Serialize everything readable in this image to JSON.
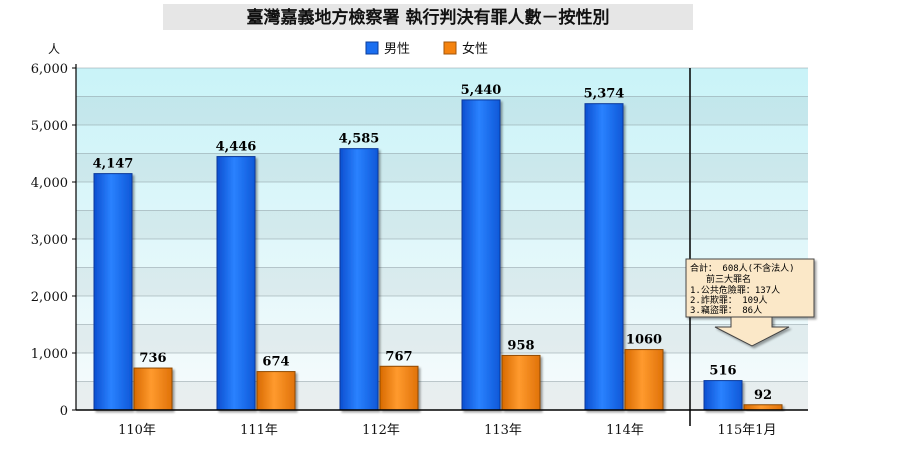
{
  "chart_data": {
    "type": "bar",
    "title": "臺灣嘉義地方檢察署  執行判決有罪人數－按性別",
    "ylabel": "人",
    "xlabel": "",
    "categories": [
      "110年",
      "111年",
      "112年",
      "113年",
      "114年",
      "115年1月"
    ],
    "series": [
      {
        "name": "男性",
        "color": "#1a6ef0",
        "values": [
          4147,
          4446,
          4585,
          5440,
          5374,
          516
        ],
        "labels": [
          "4,147",
          "4,446",
          "4,585",
          "5,440",
          "5,374",
          "516"
        ]
      },
      {
        "name": "女性",
        "color": "#f5830f",
        "values": [
          736,
          674,
          767,
          958,
          1060,
          92
        ],
        "labels": [
          "736",
          "674",
          "767",
          "958",
          "1060",
          "92"
        ]
      }
    ],
    "ylim": [
      0,
      6000
    ],
    "yticks": [
      0,
      1000,
      2000,
      3000,
      4000,
      5000,
      6000
    ],
    "ytick_labels": [
      "0",
      "1,000",
      "2,000",
      "3,000",
      "4,000",
      "5,000",
      "6,000"
    ],
    "legend_position": "top-center",
    "grid": true,
    "divider_after_category": 4,
    "annotation": {
      "lines": [
        "合計： 608人(不含法人)",
        "前三大罪名",
        "1.公共危險罪：137人",
        "2.詐欺罪：   109人",
        "3.竊盜罪：    86人"
      ],
      "points_to_category": 5
    }
  }
}
